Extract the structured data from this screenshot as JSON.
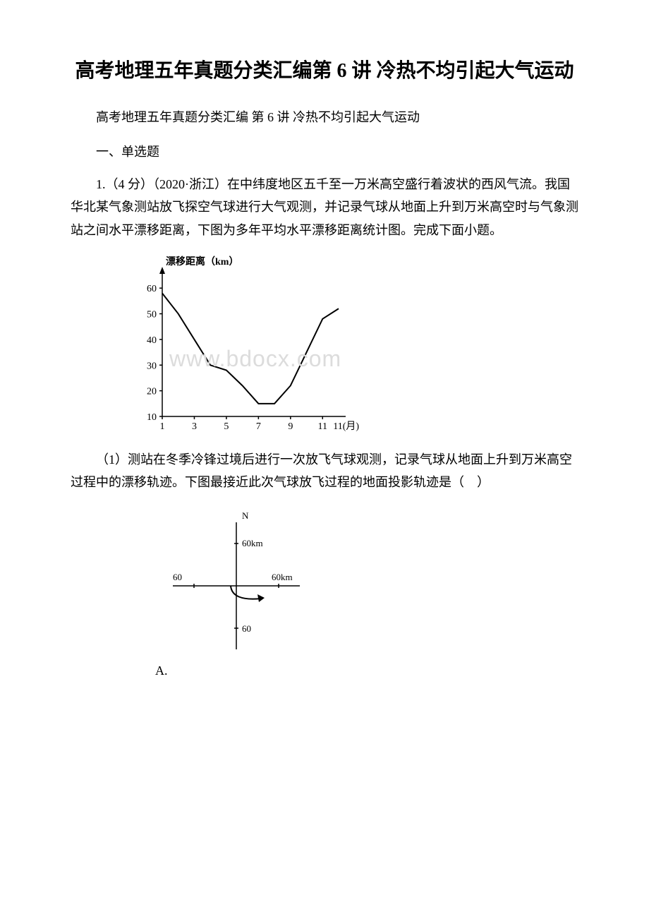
{
  "title": "高考地理五年真题分类汇编第 6 讲 冷热不均引起大气运动",
  "subtitle": "高考地理五年真题分类汇编 第 6 讲 冷热不均引起大气运动",
  "section_header": "一、单选题",
  "question1": {
    "number_text": "1.（4 分）（2020·浙江）在中纬度地区五千至一万米高空盛行着波状的西风气流。我国华北某气象测站放飞探空气球进行大气观测，并记录气球从地面上升到万米高空时与气象测站之间水平漂移距离，下图为多年平均水平漂移距离统计图。完成下面小题。",
    "sub_question": "（1）测站在冬季冷锋过境后进行一次放飞气球观测，记录气球从地面上升到万米高空过程中的漂移轨迹。下图最接近此次气球放飞过程的地面投影轨迹是（　）"
  },
  "chart1": {
    "y_label": "漂移距离（km）",
    "x_label": "11(月)",
    "y_ticks": [
      10,
      20,
      30,
      40,
      50,
      60
    ],
    "x_ticks": [
      1,
      3,
      5,
      7,
      9,
      11
    ],
    "data_points": [
      {
        "x": 1,
        "y": 58
      },
      {
        "x": 2,
        "y": 50
      },
      {
        "x": 3,
        "y": 40
      },
      {
        "x": 4,
        "y": 30
      },
      {
        "x": 5,
        "y": 28
      },
      {
        "x": 6,
        "y": 22
      },
      {
        "x": 7,
        "y": 15
      },
      {
        "x": 8,
        "y": 15
      },
      {
        "x": 9,
        "y": 22
      },
      {
        "x": 10,
        "y": 35
      },
      {
        "x": 11,
        "y": 48
      },
      {
        "x": 12,
        "y": 52
      }
    ],
    "line_color": "#000000",
    "axis_color": "#000000",
    "font_size": 14
  },
  "watermark_text": "www.bdocx.com",
  "chart2": {
    "n_label": "N",
    "axis_labels": {
      "top": "60km",
      "right": "60km",
      "bottom": "60",
      "left": "60"
    },
    "curve_start": {
      "x": -8,
      "y": 0
    },
    "curve_end": {
      "x": 35,
      "y": -18
    },
    "axis_color": "#000000",
    "font_size": 13
  },
  "option_a_label": "A."
}
